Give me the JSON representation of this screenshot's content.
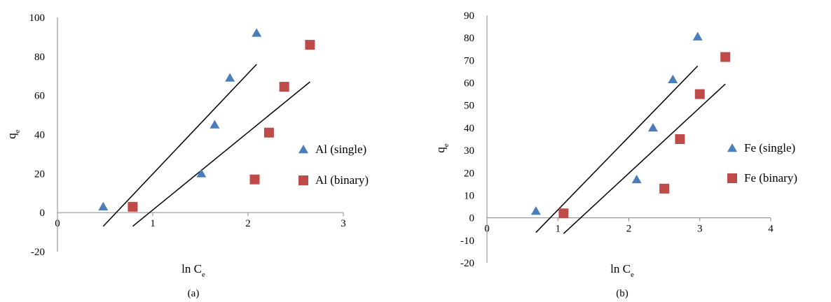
{
  "chart_data": [
    {
      "type": "scatter",
      "panel_label": "(a)",
      "xlabel": {
        "main": "ln C",
        "sub": "e"
      },
      "ylabel": {
        "main": "q",
        "sub": "e"
      },
      "xlim": [
        0,
        3
      ],
      "ylim": [
        -20,
        100
      ],
      "xticks": [
        "0",
        "1",
        "2",
        "3"
      ],
      "yticks": [
        "-20",
        "0",
        "20",
        "40",
        "60",
        "80",
        "100"
      ],
      "xtick_values": [
        0,
        1,
        2,
        3
      ],
      "ytick_values": [
        -20,
        0,
        20,
        40,
        60,
        80,
        100
      ],
      "grid": false,
      "legend_position": "right",
      "series": [
        {
          "name": "Al (single)",
          "marker": "triangle",
          "color": "#4a7ebb",
          "x": [
            0.48,
            1.51,
            1.65,
            1.81,
            2.09
          ],
          "y": [
            3,
            20,
            45,
            69,
            92
          ]
        },
        {
          "name": "Al (binary)",
          "marker": "square",
          "color": "#be4b48",
          "x": [
            0.79,
            2.07,
            2.22,
            2.38,
            2.65
          ],
          "y": [
            3,
            17,
            41,
            64.5,
            86
          ]
        }
      ],
      "trendlines": [
        {
          "x": [
            0.48,
            2.09
          ],
          "y": [
            -7,
            76
          ]
        },
        {
          "x": [
            0.79,
            2.65
          ],
          "y": [
            -7,
            67
          ]
        }
      ]
    },
    {
      "type": "scatter",
      "panel_label": "(b)",
      "xlabel": {
        "main": "ln C",
        "sub": "e"
      },
      "ylabel": {
        "main": "q",
        "sub": "e"
      },
      "xlim": [
        0,
        4
      ],
      "ylim": [
        -20,
        90
      ],
      "xticks": [
        "0",
        "1",
        "2",
        "3",
        "4"
      ],
      "yticks": [
        "-20",
        "-10",
        "0",
        "10",
        "20",
        "30",
        "40",
        "50",
        "60",
        "70",
        "80",
        "90"
      ],
      "xtick_values": [
        0,
        1,
        2,
        3,
        4
      ],
      "ytick_values": [
        -20,
        -10,
        0,
        10,
        20,
        30,
        40,
        50,
        60,
        70,
        80,
        90
      ],
      "grid": false,
      "legend_position": "right",
      "series": [
        {
          "name": "Fe (single)",
          "marker": "triangle",
          "color": "#4a7ebb",
          "x": [
            0.69,
            2.11,
            2.34,
            2.62,
            2.97
          ],
          "y": [
            3,
            17,
            40,
            61.5,
            80.5
          ]
        },
        {
          "name": "Fe (binary)",
          "marker": "square",
          "color": "#be4b48",
          "x": [
            1.08,
            2.5,
            2.72,
            3.0,
            3.36
          ],
          "y": [
            2,
            13,
            35,
            55,
            71.5
          ]
        }
      ],
      "trendlines": [
        {
          "x": [
            0.69,
            2.97
          ],
          "y": [
            -6.5,
            67.5
          ]
        },
        {
          "x": [
            1.08,
            3.36
          ],
          "y": [
            -7,
            59.5
          ]
        }
      ]
    }
  ]
}
